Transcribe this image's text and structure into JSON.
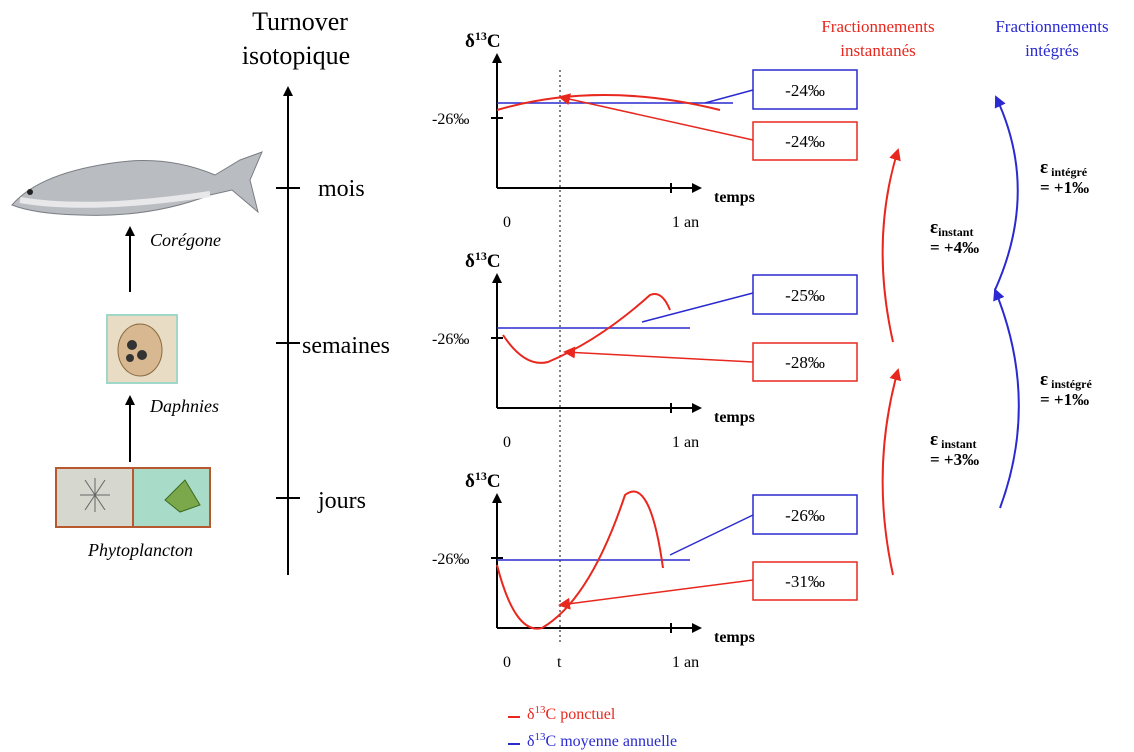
{
  "axis": {
    "title": [
      "Turnover",
      "isotopique"
    ],
    "levels": [
      "mois",
      "semaines",
      "jours"
    ]
  },
  "organisms": [
    "Corégone",
    "Daphnies",
    "Phytoplancton"
  ],
  "headers": {
    "instant": [
      "Fractionnements",
      "instantanés"
    ],
    "integrated": [
      "Fractionnements",
      "intégrés"
    ]
  },
  "panels": [
    {
      "ylabel": {
        "symbol": "δ",
        "superscript": "13",
        "element": "C"
      },
      "ytick": "-26‰",
      "xlabel": "temps",
      "xticks": [
        "0",
        "1 an"
      ],
      "boxes": {
        "integrated": "-24‰",
        "instant": "-24‰"
      }
    },
    {
      "ylabel": {
        "symbol": "δ",
        "superscript": "13",
        "element": "C"
      },
      "ytick": "-26‰",
      "xlabel": "temps",
      "xticks": [
        "0",
        "1 an"
      ],
      "boxes": {
        "integrated": "-25‰",
        "instant": "-28‰"
      }
    },
    {
      "ylabel": {
        "symbol": "δ",
        "superscript": "13",
        "element": "C"
      },
      "ytick": "-26‰",
      "xlabel": "temps",
      "xticks": [
        "0",
        "1 an"
      ],
      "marker": "t",
      "boxes": {
        "integrated": "-26‰",
        "instant": "-31‰"
      }
    }
  ],
  "fractionations": {
    "instant": [
      {
        "symbol": "ε",
        "subscript": "instant",
        "value": "= +4‰"
      },
      {
        "symbol": "ε",
        "subscript": " instant",
        "value": "= +3‰"
      }
    ],
    "integrated": [
      {
        "symbol": "ε",
        "subscript": " intégré",
        "value": "= +1‰"
      },
      {
        "symbol": "ε",
        "subscript": " instégré",
        "value": "= +1‰"
      }
    ]
  },
  "legend": [
    {
      "symbol": "δ",
      "superscript": "13",
      "text": "C ponctuel"
    },
    {
      "symbol": "δ",
      "superscript": "13",
      "text": "C moyenne annuelle"
    }
  ]
}
